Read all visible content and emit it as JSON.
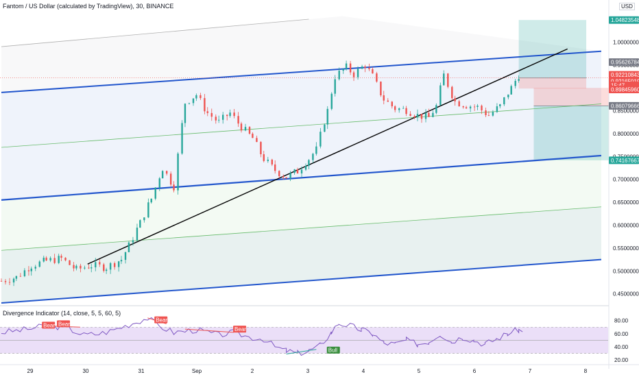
{
  "header": {
    "title": "Fantom / US Dollar (calculated by TradingView), 30, BINANCE",
    "currency": "USD"
  },
  "indicator": {
    "title": "Divergence Indicator (14, close, 5, 5, 60, 5)"
  },
  "colors": {
    "up": "#26a69a",
    "down": "#ef5350",
    "channel": "#2155cc",
    "channel_light": "#9e9e9e",
    "inner_green": "#66bb6a",
    "trendline": "#000000",
    "rsi": "#7e57c2",
    "rsi_band": "#e8d9f7"
  },
  "chart_data": [
    {
      "type": "candlestick",
      "title": "Fantom / US Dollar (calculated by TradingView), 30, BINANCE",
      "x_ticks": [
        "29",
        "30",
        "31",
        "Sep",
        "2",
        "3",
        "4",
        "5",
        "6",
        "7",
        "8"
      ],
      "y_ticks": [
        "1.00000000",
        "0.95000000",
        "0.90000000",
        "0.85000000",
        "0.80000000",
        "0.75000000",
        "0.70000000",
        "0.65000000",
        "0.60000000",
        "0.55000000",
        "0.50000000",
        "0.45000000"
      ],
      "ylim": [
        0.43,
        1.065
      ],
      "price_labels": [
        {
          "value": "1.04823548",
          "kind": "target-up",
          "color": "#26a69a"
        },
        {
          "value": "0.95626784",
          "kind": "level",
          "color": "#787b86"
        },
        {
          "value": "0.92210843",
          "kind": "price",
          "color": "#ef5350"
        },
        {
          "value": "0.92165019",
          "kind": "price",
          "color": "#ef5350"
        },
        {
          "value": "15:47",
          "kind": "countdown",
          "color": "#ef5350"
        },
        {
          "value": "0.89845960",
          "kind": "price",
          "color": "#ef5350"
        },
        {
          "value": "0.86079666",
          "kind": "level",
          "color": "#787b86"
        },
        {
          "value": "0.74167667",
          "kind": "target-down",
          "color": "#26a69a"
        }
      ],
      "close_path": [
        [
          28.4,
          0.478
        ],
        [
          28.6,
          0.486
        ],
        [
          28.8,
          0.512
        ],
        [
          29.0,
          0.522
        ],
        [
          29.2,
          0.527
        ],
        [
          29.4,
          0.503
        ],
        [
          29.6,
          0.512
        ],
        [
          29.8,
          0.508
        ],
        [
          30.0,
          0.525
        ],
        [
          30.1,
          0.555
        ],
        [
          30.25,
          0.605
        ],
        [
          30.4,
          0.658
        ],
        [
          30.55,
          0.725
        ],
        [
          30.7,
          0.685
        ],
        [
          30.85,
          0.868
        ],
        [
          31.0,
          0.885
        ],
        [
          31.15,
          0.845
        ],
        [
          31.3,
          0.825
        ],
        [
          31.45,
          0.845
        ],
        [
          31.6,
          0.815
        ],
        [
          31.75,
          0.79
        ],
        [
          31.9,
          0.745
        ],
        [
          32.05,
          0.72
        ],
        [
          32.2,
          0.705
        ],
        [
          32.35,
          0.718
        ],
        [
          32.5,
          0.745
        ],
        [
          32.6,
          0.765
        ],
        [
          32.75,
          0.85
        ],
        [
          32.85,
          0.925
        ],
        [
          33.0,
          0.945
        ],
        [
          33.1,
          0.93
        ],
        [
          33.25,
          0.95
        ],
        [
          33.35,
          0.925
        ],
        [
          33.5,
          0.875
        ],
        [
          33.65,
          0.855
        ],
        [
          33.8,
          0.852
        ],
        [
          33.95,
          0.84
        ],
        [
          34.1,
          0.835
        ],
        [
          34.2,
          0.86
        ],
        [
          34.3,
          0.928
        ],
        [
          34.45,
          0.87
        ],
        [
          34.6,
          0.862
        ],
        [
          34.75,
          0.858
        ],
        [
          34.9,
          0.84
        ],
        [
          35.05,
          0.86
        ],
        [
          35.2,
          0.9
        ],
        [
          35.3,
          0.928
        ],
        [
          35.35,
          0.922
        ]
      ],
      "lines": [
        {
          "name": "regression-channel-upper",
          "color": "#2155cc",
          "points": [
            [
              28.4,
              0.89
            ],
            [
              36.4,
              0.98
            ]
          ]
        },
        {
          "name": "regression-channel-middle",
          "color": "#2155cc",
          "points": [
            [
              28.4,
              0.655
            ],
            [
              36.4,
              0.752
            ]
          ]
        },
        {
          "name": "regression-channel-lower",
          "color": "#2155cc",
          "points": [
            [
              28.4,
              0.43
            ],
            [
              36.4,
              0.525
            ]
          ]
        },
        {
          "name": "channel-outer-top",
          "color": "#b0b0b0",
          "points": [
            [
              28.4,
              0.99
            ],
            [
              32.5,
              1.05
            ]
          ]
        },
        {
          "name": "channel-inner-green-upper",
          "color": "#66bb6a",
          "points": [
            [
              28.4,
              0.77
            ],
            [
              36.4,
              0.865
            ]
          ]
        },
        {
          "name": "channel-inner-green-lower",
          "color": "#66bb6a",
          "points": [
            [
              28.4,
              0.545
            ],
            [
              36.4,
              0.64
            ]
          ]
        },
        {
          "name": "trendline",
          "color": "#000000",
          "points": [
            [
              29.55,
              0.515
            ],
            [
              35.95,
              0.985
            ]
          ]
        }
      ],
      "positions": [
        {
          "name": "long-position",
          "x_range": [
            35.3,
            36.2
          ],
          "entry": 0.92165019,
          "target": 1.04823548,
          "stop": 0.8984596
        },
        {
          "name": "short-position",
          "x_range": [
            35.5,
            36.5
          ],
          "entry": 0.86079666,
          "target": 0.74167667,
          "stop": 0.9
        }
      ]
    },
    {
      "type": "line",
      "title": "Divergence Indicator (14, close, 5, 5, 60, 5)",
      "y_ticks": [
        "80.00",
        "60.00",
        "40.00",
        "20.00"
      ],
      "ylim": [
        17,
        88
      ],
      "band": [
        30,
        70
      ],
      "midline": 50,
      "rsi_path": [
        [
          28.4,
          62
        ],
        [
          28.7,
          66
        ],
        [
          29.0,
          72
        ],
        [
          29.25,
          70
        ],
        [
          29.5,
          58
        ],
        [
          29.7,
          60
        ],
        [
          29.85,
          64
        ],
        [
          30.0,
          70
        ],
        [
          30.2,
          78
        ],
        [
          30.35,
          84
        ],
        [
          30.5,
          72
        ],
        [
          30.7,
          62
        ],
        [
          31.0,
          66
        ],
        [
          31.3,
          58
        ],
        [
          31.5,
          62
        ],
        [
          31.7,
          55
        ],
        [
          31.9,
          52
        ],
        [
          32.05,
          40
        ],
        [
          32.2,
          34
        ],
        [
          32.35,
          30
        ],
        [
          32.5,
          34
        ],
        [
          32.65,
          42
        ],
        [
          32.8,
          62
        ],
        [
          32.9,
          76
        ],
        [
          33.05,
          72
        ],
        [
          33.2,
          66
        ],
        [
          33.35,
          60
        ],
        [
          33.5,
          46
        ],
        [
          33.65,
          44
        ],
        [
          33.8,
          50
        ],
        [
          33.95,
          44
        ],
        [
          34.1,
          48
        ],
        [
          34.25,
          60
        ],
        [
          34.4,
          48
        ],
        [
          34.55,
          55
        ],
        [
          34.7,
          50
        ],
        [
          34.85,
          44
        ],
        [
          35.0,
          52
        ],
        [
          35.15,
          60
        ],
        [
          35.3,
          66
        ],
        [
          35.35,
          62
        ]
      ],
      "labels": [
        {
          "text": "Bear",
          "x": 28.95,
          "y": 72
        },
        {
          "text": "Bear",
          "x": 29.15,
          "y": 74
        },
        {
          "text": "Bear",
          "x": 30.45,
          "y": 80
        },
        {
          "text": "Bear",
          "x": 31.5,
          "y": 66
        },
        {
          "text": "Bull",
          "x": 32.75,
          "y": 34
        }
      ]
    }
  ]
}
